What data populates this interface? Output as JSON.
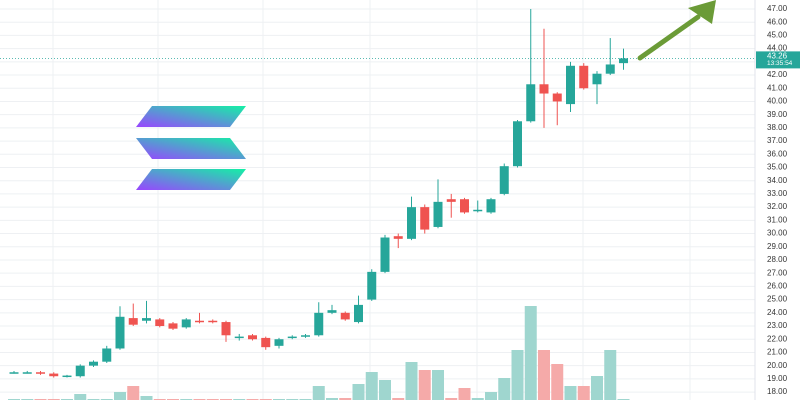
{
  "chart_data": {
    "type": "candlestick",
    "up_color": "#26a69a",
    "down_color": "#ef5350",
    "volume_up_color": "#9fd6cf",
    "volume_down_color": "#f5aaa9",
    "grid": true,
    "ylim": [
      17.4,
      47.68
    ],
    "yticks": [
      {
        "value": 18,
        "label": "18.00"
      },
      {
        "value": 19,
        "label": "19.00"
      },
      {
        "value": 20,
        "label": "20.00"
      },
      {
        "value": 21,
        "label": "21.00"
      },
      {
        "value": 22,
        "label": "22.00"
      },
      {
        "value": 23,
        "label": "23.00"
      },
      {
        "value": 24,
        "label": "24.00"
      },
      {
        "value": 25,
        "label": "25.00"
      },
      {
        "value": 26,
        "label": "26.00"
      },
      {
        "value": 27,
        "label": "27.00"
      },
      {
        "value": 28,
        "label": "28.00"
      },
      {
        "value": 29,
        "label": "29.00"
      },
      {
        "value": 30,
        "label": "30.00"
      },
      {
        "value": 31,
        "label": "31.00"
      },
      {
        "value": 32,
        "label": "32.00"
      },
      {
        "value": 33,
        "label": "33.00"
      },
      {
        "value": 34,
        "label": "34.00"
      },
      {
        "value": 35,
        "label": "35.00"
      },
      {
        "value": 36,
        "label": "36.00"
      },
      {
        "value": 37,
        "label": "37.00"
      },
      {
        "value": 38,
        "label": "38.00"
      },
      {
        "value": 39,
        "label": "39.00"
      },
      {
        "value": 40,
        "label": "40.00"
      },
      {
        "value": 41,
        "label": "41.00"
      },
      {
        "value": 42,
        "label": "42.00"
      },
      {
        "value": 43,
        "label": "43.00"
      },
      {
        "value": 44,
        "label": "44.00"
      },
      {
        "value": 45,
        "label": "45.00"
      },
      {
        "value": 46,
        "label": "46.00"
      },
      {
        "value": 47,
        "label": "47.00"
      }
    ],
    "current_price": 43.26,
    "countdown": "13:35:54",
    "open": [
      19.45,
      19.5,
      19.5,
      19.4,
      19.2,
      19.2,
      20.0,
      20.3,
      21.3,
      23.6,
      23.4,
      23.5,
      23.2,
      22.9,
      23.4,
      23.4,
      23.3,
      22.1,
      22.3,
      22.1,
      21.5,
      22.1,
      22.2,
      22.3,
      24.0,
      24.0,
      23.3,
      25.0,
      27.1,
      29.8,
      29.6,
      32.0,
      30.5,
      32.6,
      32.6,
      31.7,
      31.6,
      33.0,
      35.1,
      38.5,
      41.3,
      40.6,
      39.8,
      42.7,
      41.3,
      42.1,
      42.9
    ],
    "high": [
      19.6,
      19.6,
      19.6,
      19.5,
      19.3,
      20.1,
      20.4,
      21.5,
      24.5,
      24.7,
      24.9,
      23.6,
      23.3,
      23.6,
      24.0,
      23.5,
      23.4,
      22.4,
      22.4,
      22.2,
      22.1,
      22.3,
      22.4,
      24.8,
      24.6,
      24.1,
      25.3,
      27.3,
      29.9,
      30.0,
      32.8,
      32.2,
      34.1,
      33.0,
      32.7,
      32.5,
      32.7,
      35.3,
      38.6,
      47.0,
      45.5,
      40.7,
      43.0,
      42.9,
      42.3,
      44.8,
      44.0
    ],
    "low": [
      19.4,
      19.4,
      19.3,
      19.1,
      19.1,
      19.1,
      19.9,
      20.2,
      21.2,
      23.0,
      23.2,
      22.9,
      22.7,
      22.8,
      23.2,
      23.2,
      21.8,
      21.9,
      21.9,
      21.2,
      21.3,
      22.0,
      22.1,
      22.2,
      23.9,
      23.4,
      23.2,
      24.9,
      27.0,
      28.9,
      29.5,
      30.0,
      30.4,
      31.2,
      31.5,
      31.6,
      31.5,
      32.9,
      35.0,
      38.4,
      38.0,
      38.2,
      39.2,
      40.9,
      39.8,
      42.0,
      42.4
    ],
    "close": [
      19.5,
      19.5,
      19.4,
      19.2,
      19.25,
      20.0,
      20.3,
      21.3,
      23.7,
      23.1,
      23.6,
      23.0,
      22.8,
      23.5,
      23.3,
      23.3,
      22.3,
      22.2,
      22.0,
      21.4,
      22.0,
      22.2,
      22.3,
      24.0,
      24.2,
      23.5,
      24.6,
      27.1,
      29.7,
      29.6,
      32.0,
      30.3,
      32.4,
      32.4,
      31.6,
      31.8,
      32.6,
      35.1,
      38.5,
      41.3,
      40.6,
      40.0,
      42.7,
      41.0,
      42.1,
      42.8,
      43.26
    ],
    "volume": [
      1,
      1,
      1,
      1,
      1,
      6,
      1,
      1,
      8,
      14,
      4,
      1,
      1,
      1,
      1,
      1,
      1,
      1,
      1,
      1,
      1,
      1,
      1,
      14,
      2,
      2,
      16,
      28,
      20,
      2,
      38,
      30,
      30,
      2,
      12,
      2,
      8,
      22,
      50,
      94,
      50,
      36,
      14,
      14,
      24,
      50,
      1
    ]
  }
}
